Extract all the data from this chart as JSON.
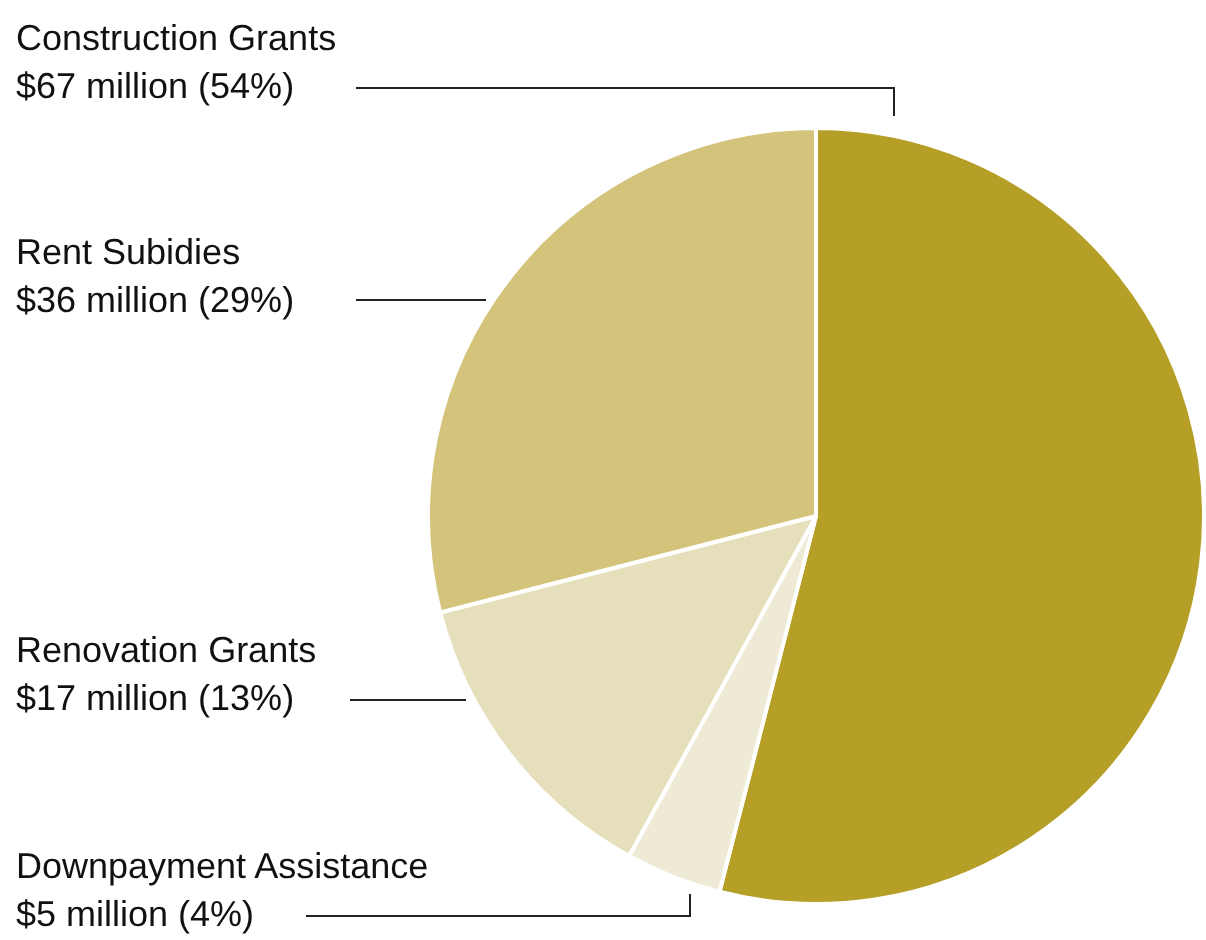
{
  "chart_data": {
    "type": "pie",
    "categories": [
      "Construction Grants",
      "Downpayment Assistance",
      "Renovation Grants",
      "Rent Subidies"
    ],
    "values": [
      54,
      4,
      13,
      29
    ],
    "value_labels": [
      "$67 million (54%)",
      "$5 million (4%)",
      "$17 million (13%)",
      "$36 million (29%)"
    ],
    "colors": [
      "#b59f27",
      "#efead6",
      "#e6dfbb",
      "#d4c47b"
    ],
    "legend": false
  }
}
